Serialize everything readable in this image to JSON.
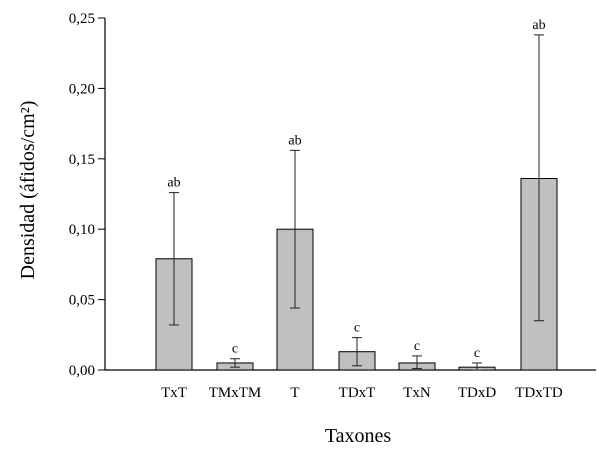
{
  "chart_data": {
    "type": "bar",
    "xlabel": "Taxones",
    "ylabel": "Densidad (áfidos/cm²)",
    "ylim": [
      0,
      0.25
    ],
    "yticks": [
      "0,00",
      "0,05",
      "0,10",
      "0,15",
      "0,20",
      "0,25"
    ],
    "ytick_values": [
      0,
      0.05,
      0.1,
      0.15,
      0.2,
      0.25
    ],
    "grid": false,
    "bar_color": "#c0c0c0",
    "categories": [
      "TxT",
      "TMxTM",
      "T",
      "TDxT",
      "TxN",
      "TDxD",
      "TDxTD"
    ],
    "values": [
      0.079,
      0.005,
      0.1,
      0.013,
      0.005,
      0.002,
      0.136
    ],
    "error_low": [
      0.032,
      0.002,
      0.044,
      0.003,
      0.001,
      0.0,
      0.035
    ],
    "error_high": [
      0.126,
      0.008,
      0.156,
      0.023,
      0.01,
      0.005,
      0.238
    ],
    "significance_labels": [
      "ab",
      "c",
      "ab",
      "c",
      "c",
      "c",
      "ab"
    ]
  }
}
